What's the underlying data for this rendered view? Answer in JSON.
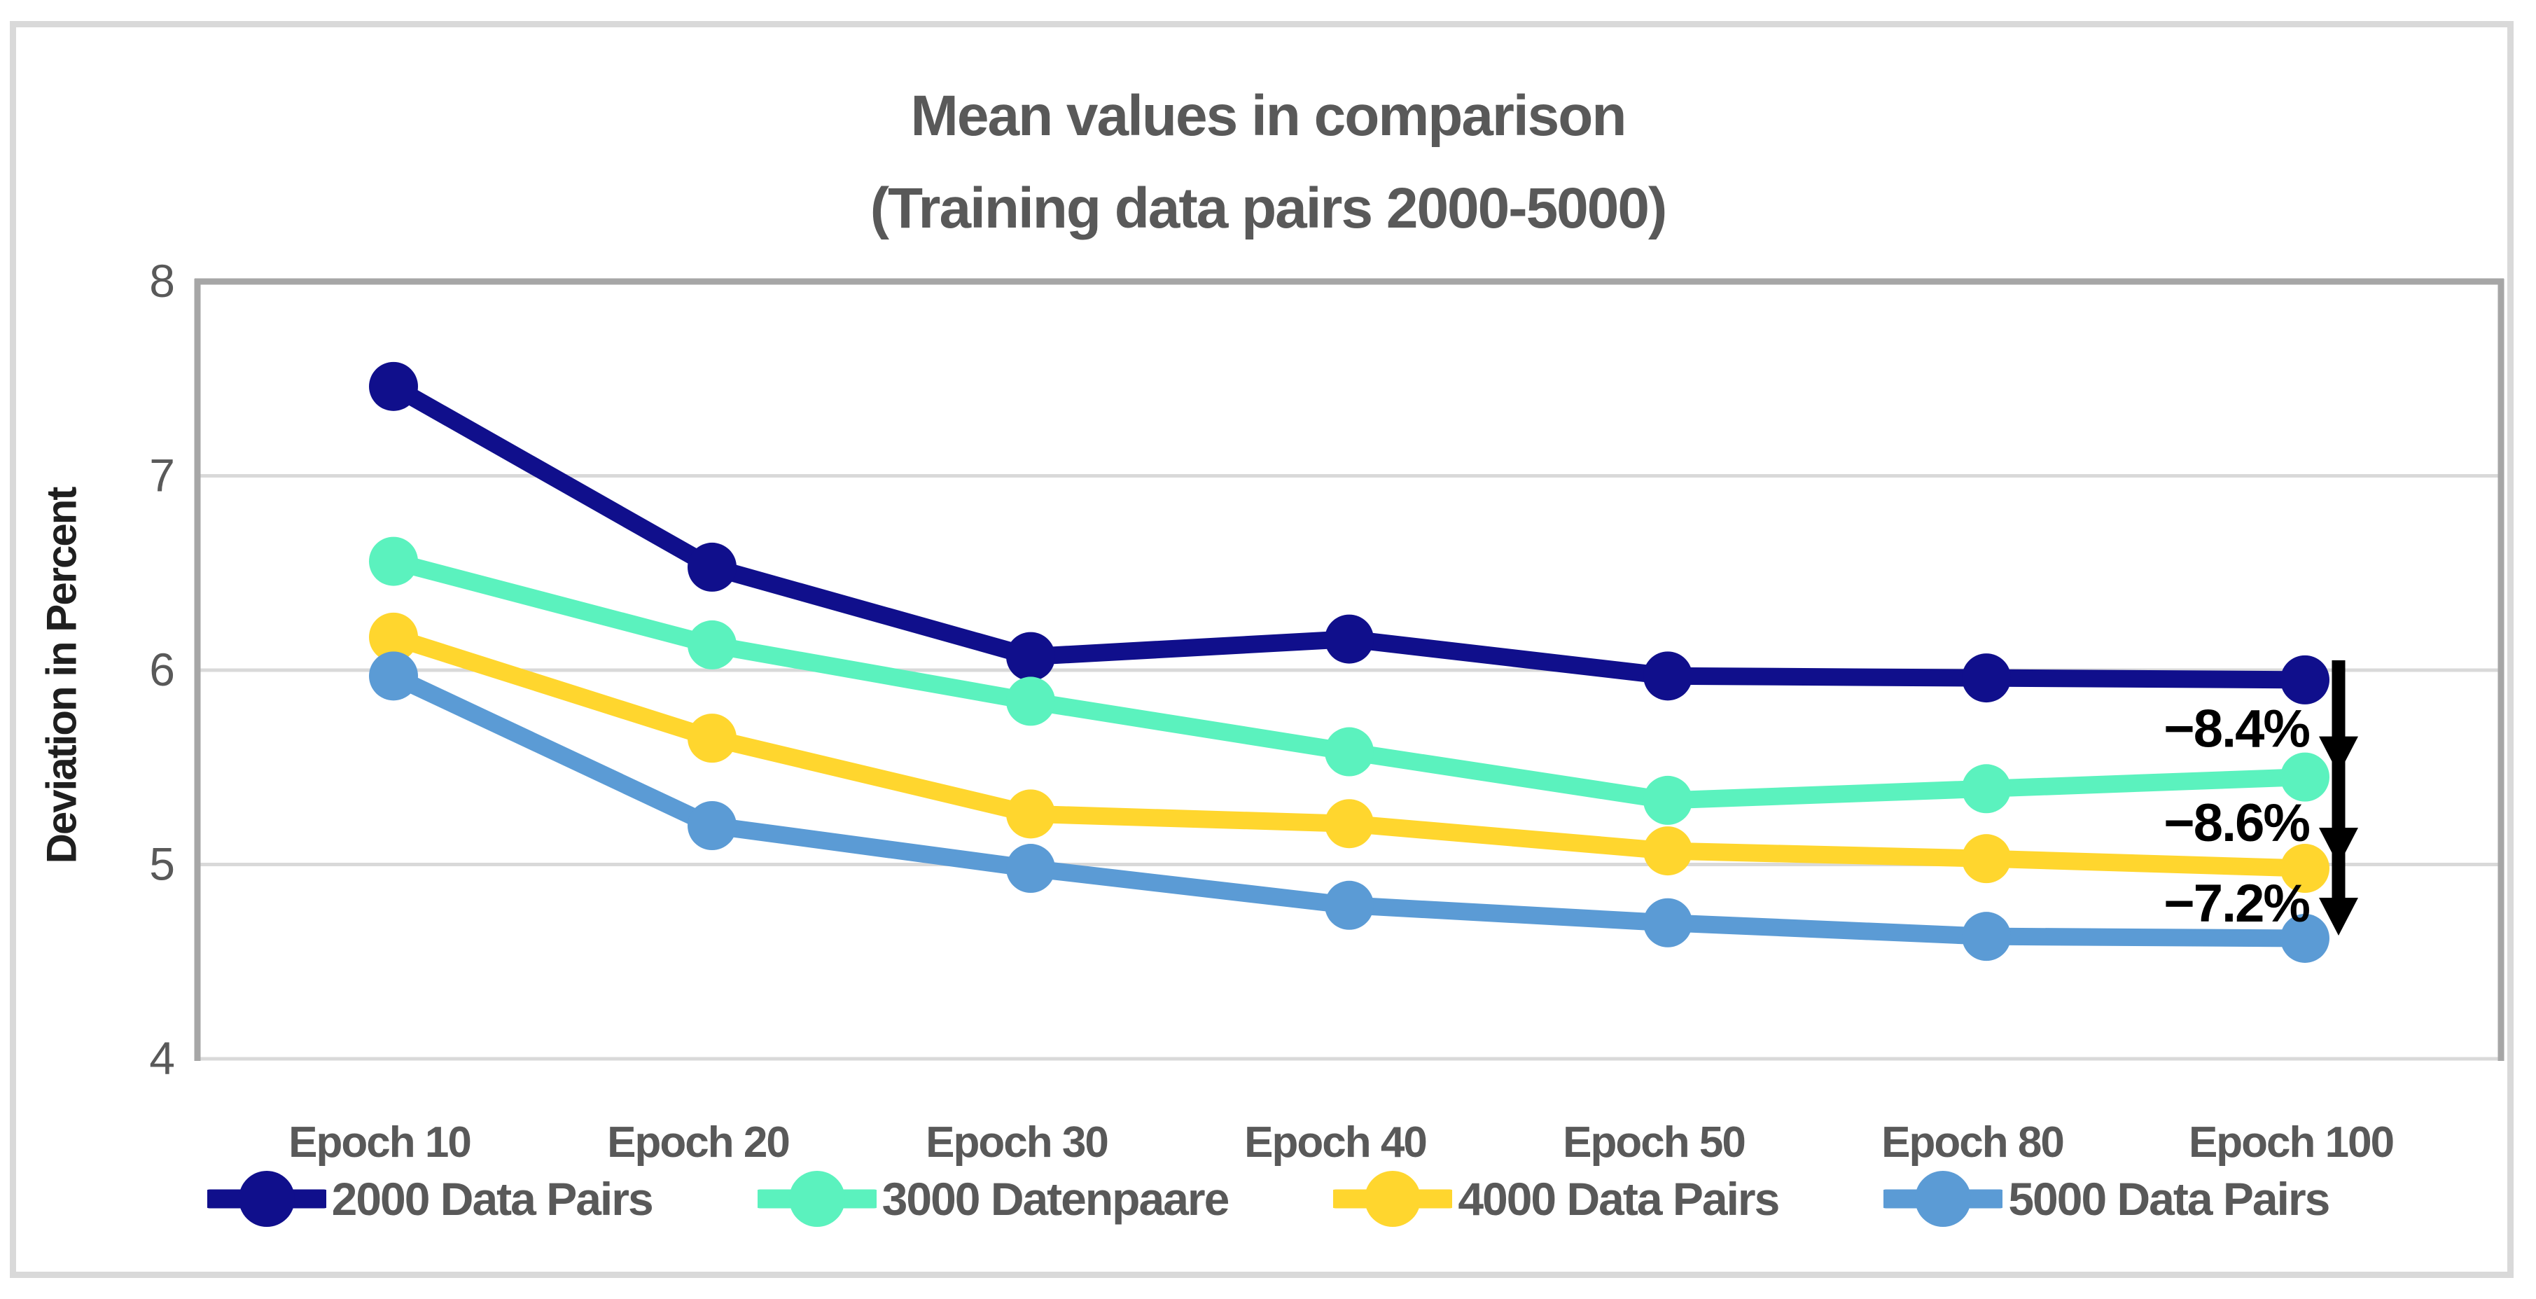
{
  "frame": {
    "background": "#ffffff",
    "border_color": "#d9d9d9"
  },
  "colors": {
    "title_text": "#595959",
    "axis_tick_text": "#595959",
    "y_axis_title_text": "#1f1f1f",
    "gridline": "#d9d9d9",
    "axis_spine": "#a6a6a6",
    "annotation_text": "#000000",
    "annotation_arrow": "#000000"
  },
  "chart_data": {
    "type": "line",
    "title": "Mean values in comparison",
    "subtitle": "(Training data pairs 2000-5000)",
    "ylabel": "Deviation in Percent",
    "xlabel": "",
    "categories": [
      "Epoch 10",
      "Epoch 20",
      "Epoch 30",
      "Epoch 40",
      "Epoch 50",
      "Epoch 80",
      "Epoch 100"
    ],
    "ylim": [
      4,
      8
    ],
    "yticks": [
      8,
      7,
      6,
      5,
      4
    ],
    "grid": true,
    "legend_position": "bottom",
    "marker": "circle",
    "series": [
      {
        "name": "2000 Data Pairs",
        "color": "#100f8c",
        "values": [
          7.46,
          6.53,
          6.07,
          6.16,
          5.97,
          5.96,
          5.95
        ]
      },
      {
        "name": "3000 Datenpaare",
        "color": "#5bf2be",
        "values": [
          6.56,
          6.13,
          5.84,
          5.58,
          5.33,
          5.39,
          5.45
        ]
      },
      {
        "name": "4000 Data Pairs",
        "color": "#ffd62e",
        "values": [
          6.17,
          5.65,
          5.26,
          5.21,
          5.07,
          5.03,
          4.98
        ]
      },
      {
        "name": "5000 Data Pairs",
        "color": "#5b9bd5",
        "values": [
          5.97,
          5.2,
          4.98,
          4.79,
          4.7,
          4.63,
          4.62
        ]
      }
    ],
    "annotations": [
      {
        "label": "−8.4%",
        "between": [
          "2000 Data Pairs",
          "3000 Datenpaare"
        ],
        "at_category": "Epoch 100"
      },
      {
        "label": "−8.6%",
        "between": [
          "3000 Datenpaare",
          "4000 Data Pairs"
        ],
        "at_category": "Epoch 100"
      },
      {
        "label": "−7.2%",
        "between": [
          "4000 Data Pairs",
          "5000 Data Pairs"
        ],
        "at_category": "Epoch 100"
      }
    ]
  }
}
